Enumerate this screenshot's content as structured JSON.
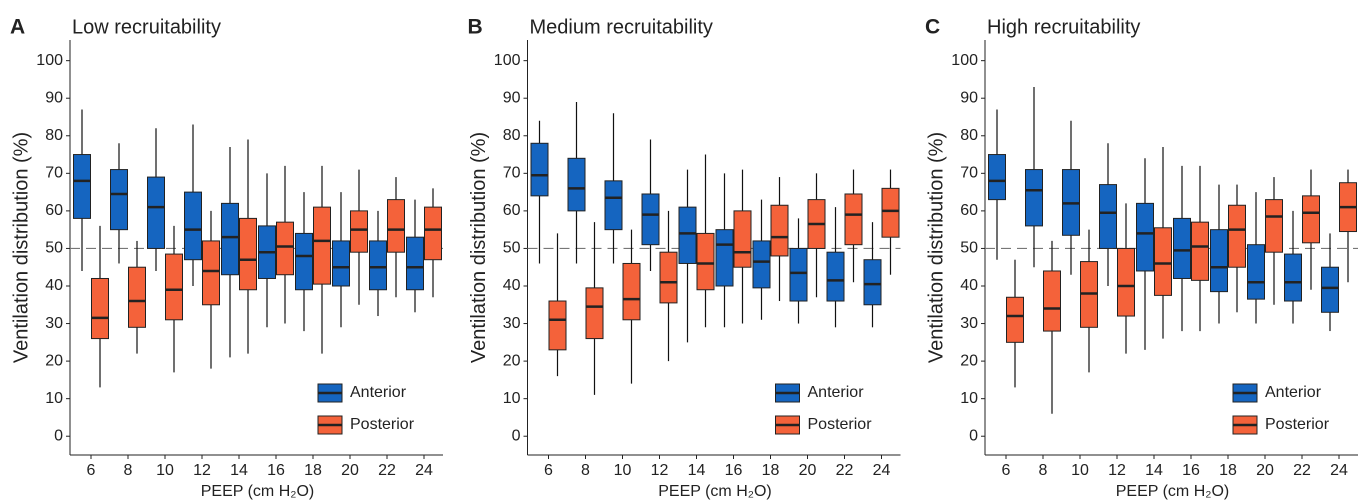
{
  "chart_data": [
    {
      "type": "boxplot",
      "panel": "A",
      "title": "Low recruitability",
      "x_label": "PEEP (cm H₂O)",
      "y_label": "Ventilation distribution (%)",
      "categories": [
        "6",
        "8",
        "10",
        "12",
        "14",
        "16",
        "18",
        "20",
        "22",
        "24"
      ],
      "ylim": [
        -5,
        105.5
      ],
      "yticks": [
        0,
        10,
        20,
        30,
        40,
        50,
        60,
        70,
        80,
        90,
        100
      ],
      "hline": 50,
      "legend": "bottom-right",
      "series": [
        {
          "name": "Anterior",
          "color": "#1565c0",
          "min": [
            44,
            46,
            44,
            40,
            21,
            29,
            28,
            29,
            32,
            33
          ],
          "q1": [
            58,
            55,
            50,
            47,
            43,
            42,
            39,
            40,
            39,
            39
          ],
          "median": [
            68,
            64.5,
            61,
            55,
            53,
            49,
            48,
            45,
            45,
            45
          ],
          "q3": [
            75,
            71,
            69,
            65,
            62,
            56,
            54,
            52,
            52,
            53
          ],
          "max": [
            87,
            78,
            82,
            83,
            77,
            70,
            65,
            65,
            60,
            63
          ]
        },
        {
          "name": "Posterior",
          "color": "#f4623a",
          "min": [
            13,
            22,
            17,
            18,
            22,
            30,
            22,
            35,
            37,
            37
          ],
          "q1": [
            26,
            29,
            31,
            35,
            39,
            43,
            40.5,
            49,
            49,
            47
          ],
          "median": [
            31.5,
            36,
            39,
            44,
            47,
            50.5,
            52,
            55,
            55,
            55
          ],
          "q3": [
            42,
            45,
            48.5,
            52,
            58,
            57,
            61,
            60,
            63,
            61
          ],
          "max": [
            56,
            52,
            56,
            60,
            79,
            72,
            72,
            71,
            69,
            66
          ]
        }
      ]
    },
    {
      "type": "boxplot",
      "panel": "B",
      "title": "Medium recruitability",
      "x_label": "PEEP (cm H₂O)",
      "y_label": "Ventilation distribution (%)",
      "categories": [
        "6",
        "8",
        "10",
        "12",
        "14",
        "16",
        "18",
        "20",
        "22",
        "24"
      ],
      "ylim": [
        -5,
        105.5
      ],
      "yticks": [
        0,
        10,
        20,
        30,
        40,
        50,
        60,
        70,
        80,
        90,
        100
      ],
      "hline": 50,
      "legend": "bottom-right",
      "series": [
        {
          "name": "Anterior",
          "color": "#1565c0",
          "min": [
            46,
            46,
            46,
            44,
            25,
            29,
            31,
            30,
            29,
            29
          ],
          "q1": [
            64,
            60,
            55,
            51,
            46,
            40,
            39.5,
            36,
            36,
            35
          ],
          "median": [
            69.5,
            66,
            63.5,
            59,
            54,
            51,
            46.5,
            43.5,
            41.5,
            40.5
          ],
          "q3": [
            78,
            74,
            68,
            64.5,
            61,
            55,
            52,
            50,
            49,
            47
          ],
          "max": [
            84,
            89,
            86,
            79,
            71,
            70,
            63,
            58,
            61,
            57
          ]
        },
        {
          "name": "Posterior",
          "color": "#f4623a",
          "min": [
            16,
            11,
            14,
            20,
            29,
            30,
            36,
            37,
            41,
            43
          ],
          "q1": [
            23,
            26,
            31,
            35.5,
            39,
            45,
            48,
            50,
            51,
            53
          ],
          "median": [
            31,
            34.5,
            36.5,
            41,
            46,
            49,
            53,
            56.5,
            59,
            60
          ],
          "q3": [
            36,
            39.5,
            46,
            49,
            54,
            60,
            61.5,
            63,
            64.5,
            66
          ],
          "max": [
            54,
            57,
            55,
            60,
            75,
            71,
            69,
            70,
            71,
            71
          ]
        }
      ]
    },
    {
      "type": "boxplot",
      "panel": "C",
      "title": "High recruitability",
      "x_label": "PEEP (cm H₂O)",
      "y_label": "Ventilation distribution (%)",
      "categories": [
        "6",
        "8",
        "10",
        "12",
        "14",
        "16",
        "18",
        "20",
        "22",
        "24"
      ],
      "ylim": [
        -5,
        105.5
      ],
      "yticks": [
        0,
        10,
        20,
        30,
        40,
        50,
        60,
        70,
        80,
        90,
        100
      ],
      "hline": 50,
      "legend": "bottom-right",
      "series": [
        {
          "name": "Anterior",
          "color": "#1565c0",
          "min": [
            47,
            45,
            43,
            40,
            23,
            28,
            30,
            30,
            30,
            28
          ],
          "q1": [
            63,
            56,
            53.5,
            50,
            44,
            42,
            38.5,
            36.5,
            36,
            33
          ],
          "median": [
            68,
            65.5,
            62,
            59.5,
            54,
            49.5,
            45,
            41,
            41,
            39.5
          ],
          "q3": [
            75,
            71,
            71,
            67,
            62,
            58,
            55,
            51,
            48.5,
            45
          ],
          "max": [
            87,
            93,
            84,
            78,
            74,
            72,
            67,
            65,
            60,
            54
          ]
        },
        {
          "name": "Posterior",
          "color": "#f4623a",
          "min": [
            13,
            6,
            17,
            22,
            26,
            28,
            33,
            35,
            39,
            41
          ],
          "q1": [
            25,
            28,
            29,
            32,
            37.5,
            41.5,
            45,
            49,
            51.5,
            54.5
          ],
          "median": [
            32,
            34,
            38,
            40,
            46,
            50.5,
            55,
            58.5,
            59.5,
            61
          ],
          "q3": [
            37,
            44,
            46.5,
            50,
            55.5,
            57,
            61.5,
            63,
            64,
            67.5
          ],
          "max": [
            47,
            52,
            55,
            62,
            77,
            72,
            67,
            69,
            71,
            71
          ]
        }
      ]
    }
  ]
}
